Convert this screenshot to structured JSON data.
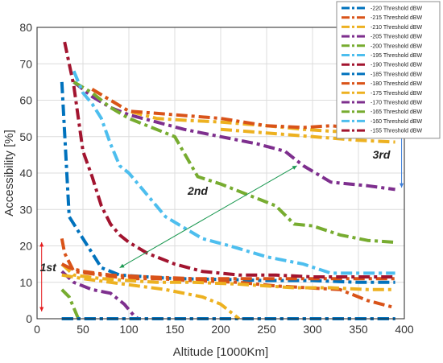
{
  "chart_data": {
    "type": "line",
    "xlabel": "Altitude [1000Km]",
    "ylabel": "Accessibility [%]",
    "xlim": [
      0,
      400
    ],
    "ylim": [
      0,
      80
    ],
    "xticks": [
      "0",
      "50",
      "100",
      "150",
      "200",
      "250",
      "300",
      "350",
      "400"
    ],
    "yticks": [
      "0",
      "10",
      "20",
      "30",
      "40",
      "50",
      "60",
      "70",
      "80"
    ],
    "grid": true,
    "legend_position": "top-right",
    "series": [
      {
        "name": "-220 Threshold dBW",
        "color": "#0072BD",
        "x": [
          27,
          35,
          50,
          70,
          90,
          120,
          150,
          200,
          250,
          300,
          350,
          390
        ],
        "y": [
          65,
          28,
          22,
          14,
          12,
          11.5,
          11,
          10.8,
          10.5,
          10.5,
          10,
          10
        ]
      },
      {
        "name": "-215 Threshold dBW",
        "color": "#D95319",
        "x": [
          27,
          30,
          40,
          70,
          100,
          130,
          170,
          220,
          260,
          330,
          360,
          390
        ],
        "y": [
          22,
          18,
          13,
          12,
          11,
          11,
          10.5,
          10,
          9,
          8,
          5,
          3
        ]
      },
      {
        "name": "-210 Threshold dBW",
        "color": "#EDB120",
        "x": [
          27,
          40,
          70,
          100,
          130,
          170,
          220,
          250,
          280,
          320,
          360,
          390
        ],
        "y": [
          15,
          12,
          11,
          10.5,
          10,
          10,
          9.5,
          9,
          8.5,
          8.5,
          8,
          8
        ]
      },
      {
        "name": "-205 Threshold dBW",
        "color": "#7E2F8E",
        "x": [
          27,
          40,
          60,
          80,
          95,
          105,
          110
        ],
        "y": [
          13,
          10,
          8,
          7,
          4,
          1,
          0
        ]
      },
      {
        "name": "-200 Threshold dBW",
        "color": "#77AC30",
        "x": [
          27,
          35,
          40,
          45
        ],
        "y": [
          8,
          6,
          3,
          0
        ]
      },
      {
        "name": "-195 Threshold dBW",
        "color": "#4DBEEE",
        "x": [
          27,
          120,
          220,
          230,
          390
        ],
        "y": [
          0,
          0,
          0,
          0,
          0
        ]
      },
      {
        "name": "-190 Threshold dBW",
        "color": "#A2142F",
        "x": [
          27,
          390
        ],
        "y": [
          0,
          0
        ]
      },
      {
        "name": "-185 Threshold dBW",
        "color": "#0072BD",
        "x": [
          27,
          390
        ],
        "y": [
          0,
          0
        ]
      },
      {
        "name": "-180 Threshold dBW",
        "color": "#D95319",
        "x": [
          27,
          35,
          50,
          80,
          120,
          170,
          220,
          280,
          330,
          390
        ],
        "y": [
          15,
          14,
          13,
          12,
          11.5,
          11,
          11,
          11,
          11,
          11
        ]
      },
      {
        "name": "-175 Threshold dBW",
        "color": "#EDB120",
        "x": [
          27,
          50,
          80,
          110,
          140,
          180,
          200,
          210,
          220
        ],
        "y": [
          12,
          11,
          10,
          9,
          8,
          6,
          4,
          2,
          0
        ]
      },
      {
        "name": "-170 Threshold dBW",
        "color": "#7E2F8E",
        "x": [
          40,
          60,
          80,
          100,
          130,
          160,
          200,
          240,
          270,
          290,
          320,
          360,
          390
        ],
        "y": [
          65,
          61,
          58,
          56,
          54,
          52,
          50,
          48,
          46,
          42,
          37.5,
          36.5,
          35.5
        ]
      },
      {
        "name": "-165 Threshold dBW",
        "color": "#77AC30",
        "x": [
          40,
          60,
          80,
          100,
          120,
          150,
          175,
          200,
          240,
          260,
          280,
          300,
          330,
          360,
          390
        ],
        "y": [
          65,
          62,
          58,
          55,
          53,
          50,
          39,
          37,
          33,
          31,
          26,
          25.5,
          23,
          21.5,
          21
        ]
      },
      {
        "name": "-160 Threshold dBW",
        "color": "#4DBEEE",
        "x": [
          40,
          50,
          60,
          70,
          80,
          90,
          100,
          120,
          140,
          160,
          180,
          210,
          250,
          290,
          320,
          360,
          390
        ],
        "y": [
          68,
          62,
          59,
          55,
          48,
          42,
          40,
          34,
          28,
          25,
          22,
          20,
          17,
          15,
          12.5,
          12.5,
          12.5
        ]
      },
      {
        "name": "-155 Threshold dBW",
        "color": "#A2142F",
        "x": [
          30,
          40,
          50,
          60,
          70,
          80,
          90,
          100,
          120,
          150,
          180,
          220,
          260,
          300,
          340,
          390
        ],
        "y": [
          76,
          64,
          46,
          39,
          31,
          26,
          23,
          21,
          18,
          15,
          13,
          12,
          12,
          11.5,
          11.5,
          11.5
        ]
      },
      {
        "name": "",
        "color": "#EDB120",
        "x": [
          60,
          100,
          130,
          160,
          200,
          250,
          290,
          320,
          360,
          390
        ],
        "y": [
          63,
          57,
          55,
          54.5,
          54,
          53,
          52,
          51.5,
          51,
          51
        ]
      },
      {
        "name": "",
        "color": "#D95319",
        "x": [
          60,
          100,
          150,
          200,
          250,
          290,
          320,
          360,
          390
        ],
        "y": [
          63,
          57,
          56,
          55,
          53,
          52.5,
          53,
          52,
          51.5
        ]
      },
      {
        "name": "",
        "color": "#EDB120",
        "x": [
          200,
          250,
          300,
          350,
          390
        ],
        "y": [
          52,
          51,
          50,
          49,
          48.5
        ]
      }
    ],
    "annotations": [
      {
        "text": "1st",
        "x": 12,
        "y": 13
      },
      {
        "text": "2nd",
        "x": 175,
        "y": 34
      },
      {
        "text": "3rd",
        "x": 375,
        "y": 44
      }
    ]
  }
}
